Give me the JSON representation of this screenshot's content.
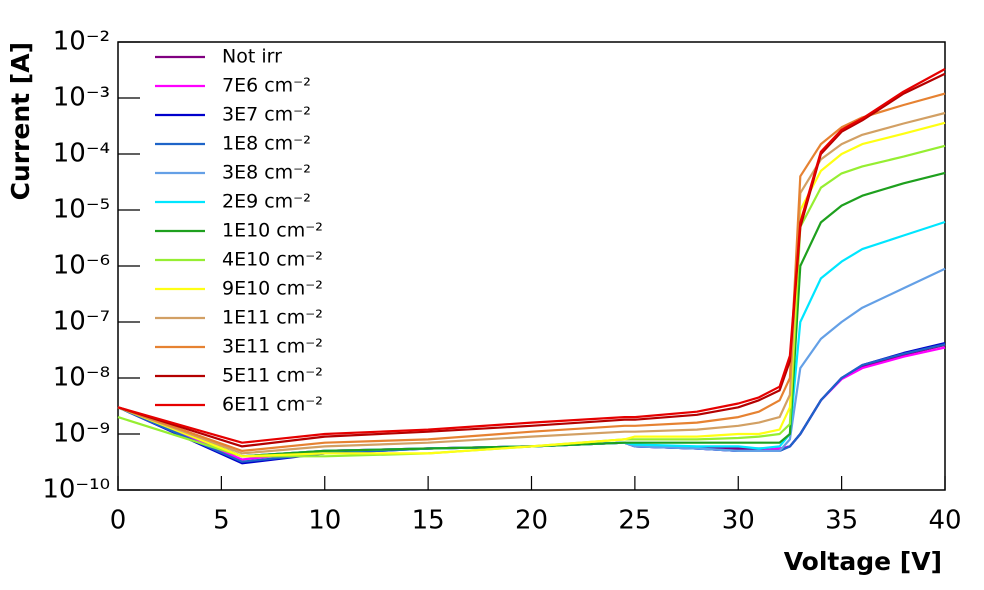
{
  "chart_data": {
    "type": "line",
    "x_label": "Voltage [V]",
    "y_label": "Current [A]",
    "ylog": true,
    "legend": "upper left",
    "xlim": [
      0,
      40
    ],
    "xticks": [
      0,
      5,
      10,
      15,
      20,
      25,
      30,
      35,
      40
    ],
    "ylim": [
      1e-10,
      0.01
    ],
    "yticks": [
      {
        "value": 1e-10,
        "label": "10⁻¹⁰"
      },
      {
        "value": 1e-09,
        "label": "10⁻⁹"
      },
      {
        "value": 1e-08,
        "label": "10⁻⁸"
      },
      {
        "value": 1e-07,
        "label": "10⁻⁷"
      },
      {
        "value": 1e-06,
        "label": "10⁻⁶"
      },
      {
        "value": 1e-05,
        "label": "10⁻⁵"
      },
      {
        "value": 0.0001,
        "label": "10⁻⁴"
      },
      {
        "value": 0.001,
        "label": "10⁻³"
      },
      {
        "value": 0.01,
        "label": "10⁻²"
      }
    ],
    "x": [
      0,
      6,
      10,
      15,
      20,
      24.5,
      25,
      28,
      30,
      31,
      32,
      32.5,
      33,
      34,
      35,
      36,
      38,
      40
    ],
    "series": [
      {
        "name": "Not irr",
        "color": "#800080",
        "values": [
          3e-09,
          4e-10,
          5e-10,
          5.5e-10,
          6e-10,
          7e-10,
          6e-10,
          5.5e-10,
          5.5e-10,
          5.5e-10,
          5.5e-10,
          6e-10,
          1e-09,
          4e-09,
          1e-08,
          1.6e-08,
          2.6e-08,
          3.9e-08
        ]
      },
      {
        "name": "7E6 cm⁻²",
        "color": "#ff00ff",
        "values": [
          3e-09,
          3.5e-10,
          5e-10,
          5.5e-10,
          6e-10,
          7e-10,
          6e-10,
          5.5e-10,
          5e-10,
          5e-10,
          5.5e-10,
          6e-10,
          1e-09,
          4e-09,
          9.5e-09,
          1.5e-08,
          2.4e-08,
          3.5e-08
        ]
      },
      {
        "name": "3E7 cm⁻²",
        "color": "#0000cc",
        "values": [
          3e-09,
          3e-10,
          4.5e-10,
          5.5e-10,
          6e-10,
          7e-10,
          6e-10,
          5.5e-10,
          5e-10,
          5e-10,
          5e-10,
          6e-10,
          1e-09,
          4e-09,
          1e-08,
          1.7e-08,
          2.8e-08,
          4.2e-08
        ]
      },
      {
        "name": "1E8 cm⁻²",
        "color": "#1e64c8",
        "values": [
          3e-09,
          3.2e-10,
          4.5e-10,
          5.5e-10,
          6e-10,
          7e-10,
          6e-10,
          5.5e-10,
          5e-10,
          5e-10,
          5e-10,
          6e-10,
          1e-09,
          4e-09,
          1e-08,
          1.7e-08,
          2.7e-08,
          4e-08
        ]
      },
      {
        "name": "3E8 cm⁻²",
        "color": "#64a0e6",
        "values": [
          3e-09,
          4e-10,
          5e-10,
          5.5e-10,
          6e-10,
          7e-10,
          6e-10,
          5.5e-10,
          5e-10,
          5e-10,
          5e-10,
          8e-10,
          1.5e-08,
          5e-08,
          1e-07,
          1.8e-07,
          4e-07,
          8.9e-07
        ]
      },
      {
        "name": "2E9 cm⁻²",
        "color": "#00e6ff",
        "values": [
          3e-09,
          4e-10,
          5e-10,
          5.5e-10,
          6e-10,
          7e-10,
          6.5e-10,
          6e-10,
          6e-10,
          5.5e-10,
          6e-10,
          1e-09,
          1e-07,
          6e-07,
          1.2e-06,
          2e-06,
          3.5e-06,
          6.1e-06
        ]
      },
      {
        "name": "1E10 cm⁻²",
        "color": "#1ea01e",
        "values": [
          3e-09,
          4e-10,
          5e-10,
          5.5e-10,
          6e-10,
          7e-10,
          7e-10,
          7e-10,
          7e-10,
          7e-10,
          7e-10,
          1e-09,
          1e-06,
          6e-06,
          1.2e-05,
          1.8e-05,
          3e-05,
          4.6e-05
        ]
      },
      {
        "name": "4E10 cm⁻²",
        "color": "#96ee32",
        "values": [
          2e-09,
          4e-10,
          4e-10,
          4.5e-10,
          6e-10,
          8e-10,
          8e-10,
          8e-10,
          8.5e-10,
          9e-10,
          1e-09,
          1.5e-09,
          5e-06,
          2.5e-05,
          4.5e-05,
          6e-05,
          9e-05,
          0.00014
        ]
      },
      {
        "name": "9E10 cm⁻²",
        "color": "#ffff14",
        "values": [
          3e-09,
          4e-10,
          4.5e-10,
          4.5e-10,
          6e-10,
          8e-10,
          9e-10,
          9e-10,
          1e-09,
          1e-09,
          1.2e-09,
          3e-09,
          1e-05,
          5e-05,
          0.0001,
          0.00015,
          0.00023,
          0.00036
        ]
      },
      {
        "name": "1E11 cm⁻²",
        "color": "#d2a064",
        "values": [
          3e-09,
          4.5e-10,
          6e-10,
          7e-10,
          9e-10,
          1.1e-09,
          1.1e-09,
          1.2e-09,
          1.4e-09,
          1.6e-09,
          2e-09,
          5e-09,
          2e-05,
          8e-05,
          0.00015,
          0.00022,
          0.00035,
          0.00054
        ]
      },
      {
        "name": "3E11 cm⁻²",
        "color": "#e68232",
        "values": [
          3e-09,
          5e-10,
          7e-10,
          8e-10,
          1.1e-09,
          1.4e-09,
          1.4e-09,
          1.6e-09,
          2e-09,
          2.5e-09,
          4e-09,
          1e-08,
          4e-05,
          0.00015,
          0.0003,
          0.00045,
          0.00075,
          0.0012
        ]
      },
      {
        "name": "5E11 cm⁻²",
        "color": "#b40000",
        "values": [
          3e-09,
          6e-10,
          9e-10,
          1.1e-09,
          1.4e-09,
          1.8e-09,
          1.8e-09,
          2.2e-09,
          3e-09,
          4e-09,
          6e-09,
          2e-08,
          5e-06,
          0.0001,
          0.00025,
          0.0004,
          0.0012,
          0.0027
        ]
      },
      {
        "name": "6E11 cm⁻²",
        "color": "#e60000",
        "values": [
          3e-09,
          7e-10,
          1e-09,
          1.2e-09,
          1.6e-09,
          2e-09,
          2e-09,
          2.5e-09,
          3.5e-09,
          4.5e-09,
          7e-09,
          2.5e-08,
          6e-06,
          0.00011,
          0.00027,
          0.00043,
          0.0013,
          0.0033
        ]
      }
    ]
  }
}
